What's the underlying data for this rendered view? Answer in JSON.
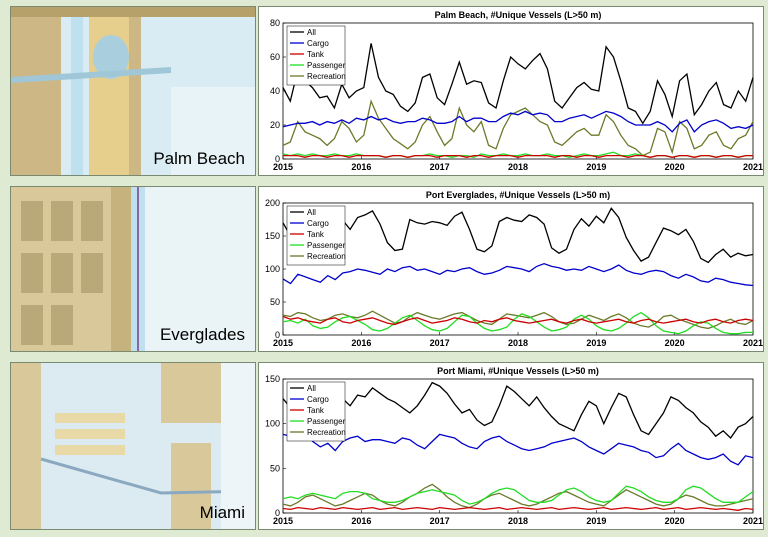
{
  "panels": [
    {
      "map_label": "Palm Beach"
    },
    {
      "map_label": "Everglades"
    },
    {
      "map_label": "Miami"
    }
  ],
  "colors": {
    "All": "#000000",
    "Cargo": "#0000cc",
    "Tank": "#cc0000",
    "Passenger": "#22dd22",
    "Recreation": "#6b7a2a"
  },
  "chart_data": [
    {
      "type": "line",
      "title": "Palm Beach, #Unique Vessels (L>50 m)",
      "xlabel": "",
      "ylabel": "",
      "xlim": [
        2015,
        2021
      ],
      "ylim": [
        0,
        80
      ],
      "xticks": [
        "2015",
        "2016",
        "2017",
        "2018",
        "2019",
        "2020",
        "2021"
      ],
      "yticks": [
        "0",
        "20",
        "40",
        "60",
        "80"
      ],
      "legend": "top-left",
      "series": [
        {
          "name": "All",
          "values": [
            42,
            34,
            52,
            46,
            42,
            36,
            37,
            30,
            44,
            36,
            40,
            42,
            68,
            48,
            40,
            38,
            31,
            28,
            33,
            48,
            50,
            36,
            32,
            44,
            57,
            44,
            46,
            45,
            33,
            30,
            46,
            60,
            56,
            53,
            58,
            62,
            53,
            34,
            30,
            36,
            42,
            45,
            41,
            40,
            66,
            60,
            46,
            30,
            28,
            21,
            28,
            46,
            38,
            25,
            46,
            50,
            26,
            32,
            40,
            45,
            32,
            30,
            40,
            34,
            48
          ]
        },
        {
          "name": "Cargo",
          "values": [
            19,
            20,
            21,
            21,
            22,
            20,
            22,
            21,
            23,
            21,
            24,
            23,
            25,
            23,
            24,
            22,
            21,
            22,
            22,
            24,
            23,
            21,
            21,
            22,
            25,
            22,
            24,
            24,
            22,
            22,
            25,
            27,
            26,
            28,
            26,
            27,
            26,
            22,
            22,
            24,
            25,
            26,
            24,
            26,
            28,
            27,
            25,
            22,
            20,
            20,
            20,
            22,
            20,
            16,
            21,
            23,
            16,
            20,
            22,
            23,
            21,
            18,
            19,
            18,
            20
          ]
        },
        {
          "name": "Tank",
          "values": [
            2,
            2,
            2,
            1,
            2,
            2,
            1,
            2,
            2,
            1,
            2,
            2,
            2,
            2,
            1,
            2,
            2,
            1,
            2,
            2,
            2,
            1,
            2,
            2,
            2,
            1,
            2,
            2,
            1,
            2,
            2,
            2,
            1,
            2,
            2,
            2,
            2,
            1,
            2,
            2,
            1,
            2,
            2,
            1,
            2,
            2,
            2,
            1,
            2,
            2,
            1,
            2,
            2,
            1,
            2,
            2,
            1,
            2,
            2,
            1,
            2,
            2,
            1,
            2,
            2
          ]
        },
        {
          "name": "Passenger",
          "values": [
            3,
            2,
            3,
            2,
            3,
            2,
            2,
            3,
            2,
            2,
            3,
            2,
            2,
            2,
            1,
            2,
            2,
            1,
            2,
            2,
            3,
            2,
            2,
            1,
            2,
            2,
            1,
            3,
            2,
            2,
            3,
            2,
            2,
            3,
            2,
            2,
            3,
            2,
            2,
            1,
            2,
            3,
            2,
            2,
            3,
            4,
            2,
            2,
            3,
            2,
            1,
            2,
            2,
            1,
            2,
            2,
            1,
            2,
            2,
            1,
            2,
            2,
            1,
            2,
            2
          ]
        },
        {
          "name": "Recreation",
          "values": [
            8,
            10,
            22,
            16,
            14,
            12,
            8,
            12,
            22,
            18,
            10,
            14,
            34,
            24,
            18,
            12,
            9,
            6,
            10,
            20,
            25,
            16,
            8,
            12,
            30,
            20,
            16,
            22,
            8,
            6,
            18,
            26,
            28,
            30,
            26,
            22,
            20,
            10,
            8,
            12,
            16,
            18,
            14,
            14,
            26,
            22,
            14,
            8,
            6,
            2,
            4,
            18,
            16,
            4,
            22,
            18,
            6,
            8,
            14,
            16,
            8,
            6,
            12,
            14,
            22
          ]
        }
      ]
    },
    {
      "type": "line",
      "title": "Port Everglades, #Unique Vessels (L>50 m)",
      "xlabel": "",
      "ylabel": "",
      "xlim": [
        2015,
        2021
      ],
      "ylim": [
        0,
        200
      ],
      "xticks": [
        "2015",
        "2016",
        "2017",
        "2018",
        "2019",
        "2020",
        "2021"
      ],
      "yticks": [
        "0",
        "50",
        "100",
        "150",
        "200"
      ],
      "legend": "top-left",
      "series": [
        {
          "name": "All",
          "values": [
            170,
            150,
            190,
            175,
            178,
            165,
            160,
            172,
            174,
            160,
            178,
            182,
            188,
            168,
            140,
            128,
            130,
            175,
            170,
            168,
            172,
            170,
            166,
            180,
            186,
            160,
            130,
            126,
            135,
            172,
            178,
            174,
            172,
            182,
            178,
            168,
            132,
            124,
            130,
            160,
            176,
            165,
            180,
            170,
            192,
            178,
            148,
            128,
            112,
            118,
            140,
            162,
            158,
            152,
            160,
            142,
            116,
            110,
            122,
            130,
            118,
            124,
            120,
            122
          ]
        },
        {
          "name": "Cargo",
          "values": [
            85,
            78,
            92,
            88,
            84,
            80,
            90,
            84,
            94,
            96,
            100,
            98,
            95,
            92,
            100,
            96,
            102,
            104,
            98,
            100,
            96,
            92,
            98,
            96,
            100,
            102,
            96,
            92,
            94,
            98,
            104,
            102,
            100,
            96,
            104,
            108,
            104,
            102,
            98,
            100,
            98,
            104,
            100,
            96,
            100,
            106,
            98,
            94,
            92,
            96,
            98,
            96,
            90,
            86,
            92,
            88,
            82,
            80,
            86,
            84,
            80,
            78,
            76,
            75
          ]
        },
        {
          "name": "Tank",
          "values": [
            28,
            24,
            26,
            22,
            20,
            18,
            24,
            26,
            20,
            18,
            22,
            24,
            26,
            22,
            18,
            16,
            20,
            24,
            26,
            22,
            18,
            20,
            22,
            26,
            24,
            20,
            18,
            22,
            20,
            24,
            26,
            22,
            20,
            18,
            20,
            22,
            24,
            20,
            18,
            22,
            24,
            20,
            18,
            20,
            22,
            24,
            20,
            18,
            22,
            24,
            20,
            18,
            20,
            22,
            24,
            20,
            18,
            22,
            24,
            20,
            18,
            22,
            24,
            22
          ]
        },
        {
          "name": "Passenger",
          "values": [
            20,
            22,
            18,
            24,
            14,
            10,
            12,
            20,
            26,
            28,
            22,
            16,
            8,
            6,
            10,
            18,
            26,
            30,
            22,
            14,
            8,
            6,
            10,
            20,
            30,
            28,
            18,
            10,
            6,
            8,
            12,
            24,
            32,
            28,
            20,
            12,
            6,
            8,
            12,
            24,
            30,
            24,
            14,
            8,
            6,
            10,
            18,
            28,
            34,
            26,
            14,
            6,
            4,
            2,
            6,
            14,
            20,
            18,
            10,
            4,
            2,
            2,
            4,
            4
          ]
        },
        {
          "name": "Recreation",
          "values": [
            30,
            28,
            34,
            32,
            26,
            22,
            24,
            30,
            32,
            28,
            26,
            30,
            36,
            30,
            24,
            18,
            20,
            28,
            34,
            30,
            26,
            24,
            28,
            32,
            34,
            28,
            22,
            18,
            16,
            24,
            32,
            30,
            28,
            26,
            30,
            34,
            28,
            20,
            16,
            18,
            24,
            30,
            26,
            22,
            28,
            32,
            26,
            18,
            14,
            12,
            18,
            28,
            30,
            24,
            20,
            16,
            12,
            10,
            14,
            20,
            24,
            18,
            16,
            22
          ]
        }
      ]
    },
    {
      "type": "line",
      "title": "Port Miami, #Unique Vessels (L>50 m)",
      "xlabel": "",
      "ylabel": "",
      "xlim": [
        2015,
        2021
      ],
      "ylim": [
        0,
        150
      ],
      "xticks": [
        "2015",
        "2016",
        "2017",
        "2018",
        "2019",
        "2020",
        "2021"
      ],
      "yticks": [
        "0",
        "50",
        "100",
        "150"
      ],
      "legend": "top-left",
      "series": [
        {
          "name": "All",
          "values": [
            128,
            118,
            136,
            124,
            120,
            110,
            115,
            126,
            128,
            120,
            132,
            130,
            140,
            134,
            128,
            124,
            118,
            112,
            120,
            132,
            146,
            142,
            134,
            122,
            112,
            116,
            104,
            98,
            102,
            120,
            142,
            136,
            128,
            120,
            130,
            118,
            108,
            100,
            96,
            92,
            110,
            125,
            120,
            100,
            118,
            134,
            130,
            110,
            92,
            88,
            100,
            112,
            130,
            126,
            118,
            112,
            102,
            96,
            86,
            92,
            84,
            96,
            100,
            108
          ]
        },
        {
          "name": "Cargo",
          "values": [
            88,
            86,
            92,
            88,
            80,
            74,
            78,
            70,
            80,
            84,
            86,
            80,
            82,
            82,
            80,
            78,
            84,
            82,
            76,
            72,
            80,
            88,
            86,
            84,
            78,
            74,
            72,
            80,
            84,
            86,
            80,
            76,
            72,
            70,
            72,
            74,
            78,
            80,
            82,
            84,
            80,
            74,
            70,
            66,
            72,
            78,
            76,
            74,
            70,
            68,
            62,
            64,
            72,
            78,
            70,
            66,
            62,
            60,
            62,
            66,
            58,
            54,
            64,
            62
          ]
        },
        {
          "name": "Tank",
          "values": [
            5,
            4,
            6,
            5,
            4,
            6,
            5,
            4,
            6,
            5,
            4,
            5,
            6,
            4,
            5,
            6,
            4,
            5,
            6,
            5,
            4,
            6,
            5,
            4,
            5,
            6,
            5,
            4,
            5,
            6,
            4,
            5,
            6,
            5,
            4,
            5,
            6,
            4,
            5,
            6,
            5,
            4,
            5,
            6,
            4,
            5,
            6,
            5,
            4,
            5,
            6,
            4,
            5,
            6,
            4,
            5,
            6,
            5,
            4,
            5,
            4,
            3,
            5,
            4
          ]
        },
        {
          "name": "Passenger",
          "values": [
            16,
            18,
            16,
            20,
            22,
            20,
            18,
            16,
            22,
            24,
            24,
            22,
            16,
            14,
            12,
            12,
            14,
            18,
            22,
            24,
            26,
            24,
            22,
            20,
            14,
            10,
            12,
            16,
            22,
            26,
            28,
            26,
            20,
            14,
            12,
            12,
            14,
            20,
            26,
            28,
            24,
            18,
            14,
            12,
            14,
            22,
            30,
            28,
            24,
            18,
            14,
            12,
            12,
            16,
            26,
            30,
            28,
            22,
            16,
            12,
            12,
            12,
            18,
            24
          ]
        },
        {
          "name": "Recreation",
          "values": [
            10,
            8,
            12,
            18,
            20,
            16,
            12,
            8,
            10,
            14,
            18,
            22,
            20,
            14,
            10,
            8,
            12,
            18,
            22,
            28,
            32,
            26,
            18,
            12,
            8,
            6,
            10,
            16,
            20,
            22,
            18,
            14,
            10,
            8,
            10,
            14,
            18,
            22,
            24,
            20,
            16,
            12,
            10,
            8,
            14,
            20,
            26,
            22,
            18,
            14,
            10,
            8,
            10,
            16,
            20,
            18,
            14,
            10,
            8,
            8,
            10,
            12,
            14,
            16
          ]
        }
      ]
    }
  ]
}
